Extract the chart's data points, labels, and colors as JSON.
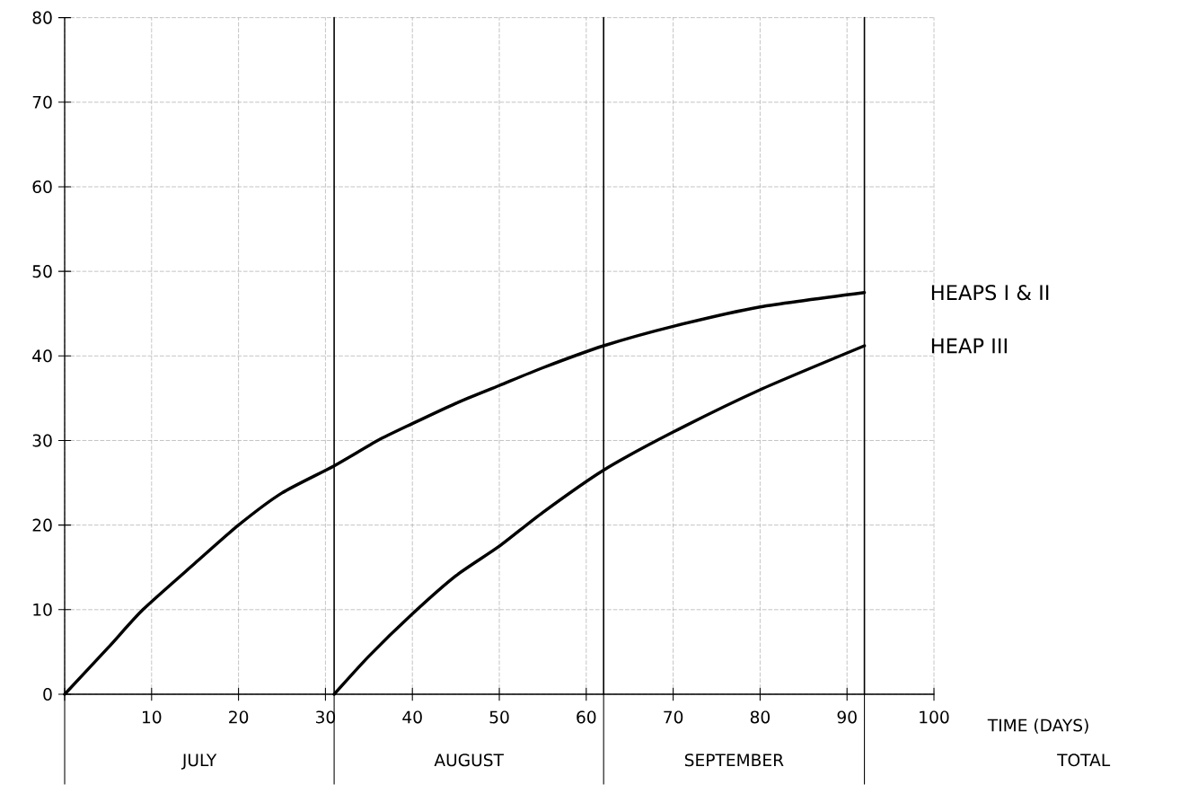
{
  "chart_data": {
    "type": "line",
    "xlabel": "TIME (DAYS)",
    "x": [
      0,
      5,
      9,
      15,
      20,
      25,
      31,
      36,
      40,
      45,
      50,
      55,
      62,
      70,
      80,
      92
    ],
    "series": [
      {
        "name": "HEAPS I & II",
        "color": "#000000",
        "values": [
          0,
          5.5,
          10,
          15.5,
          20,
          23.8,
          27,
          30,
          32,
          34.4,
          36.5,
          38.6,
          41.2,
          43.5,
          45.8,
          47.5
        ]
      },
      {
        "name": "HEAP III",
        "color": "#000000",
        "x": [
          31,
          35,
          40,
          45,
          50,
          55,
          62,
          70,
          80,
          92
        ],
        "values": [
          0,
          4.5,
          9.5,
          14,
          17.5,
          21.5,
          26.5,
          31,
          36,
          41.2
        ]
      }
    ],
    "xlim": [
      0,
      100
    ],
    "ylim": [
      0,
      80
    ],
    "xticks": [
      {
        "value": 0,
        "label": null
      },
      10,
      20,
      30,
      40,
      50,
      60,
      70,
      80,
      90,
      100
    ],
    "yticks": [
      0,
      10,
      20,
      30,
      40,
      50,
      60,
      70,
      80
    ],
    "grid": true,
    "marker": "none",
    "line_style": "solid",
    "legend": false,
    "ref_lines": [
      {
        "axis": "x",
        "value": 31
      },
      {
        "axis": "x",
        "value": 62
      },
      {
        "axis": "x",
        "value": 92
      }
    ],
    "annotations": [
      "JULY",
      "AUGUST",
      "SEPTEMBER",
      "TOTAL"
    ]
  }
}
